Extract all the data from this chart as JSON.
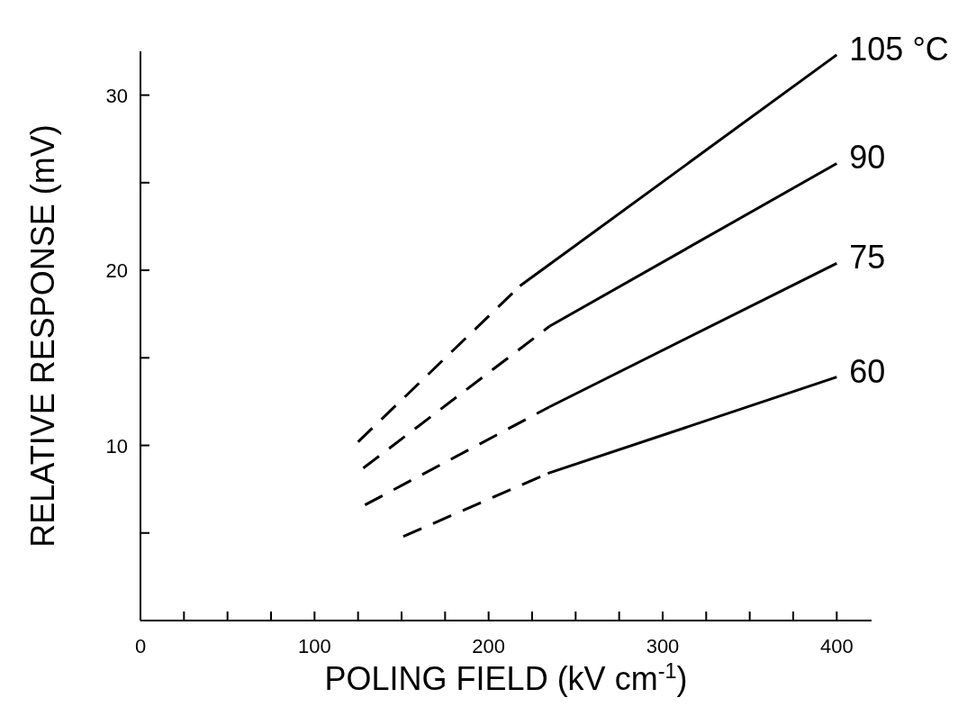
{
  "chart_data": {
    "type": "line",
    "xlabel": "POLING FIELD (kV cm$^{-1}$)",
    "ylabel": "RELATIVE RESPONSE (mV)",
    "xlim": [
      0,
      420
    ],
    "ylim": [
      0,
      32.5
    ],
    "xticks": [
      0,
      {
        "value": 25,
        "label": null
      },
      {
        "value": 50,
        "label": null
      },
      {
        "value": 75,
        "label": null
      },
      100,
      {
        "value": 125,
        "label": null
      },
      {
        "value": 150,
        "label": null
      },
      {
        "value": 175,
        "label": null
      },
      200,
      {
        "value": 225,
        "label": null
      },
      {
        "value": 250,
        "label": null
      },
      {
        "value": 275,
        "label": null
      },
      300,
      {
        "value": 325,
        "label": null
      },
      {
        "value": 350,
        "label": null
      },
      {
        "value": 375,
        "label": null
      },
      400
    ],
    "yticks": [
      {
        "value": 5,
        "label": null
      },
      10,
      {
        "value": 15,
        "label": null
      },
      20,
      {
        "value": 25,
        "label": null
      },
      30
    ],
    "grid": false,
    "marker": "none",
    "series": [
      {
        "color": "#000000",
        "line_style": "dashed",
        "x": [
          125,
          218
        ],
        "values": [
          10.2,
          19.1
        ]
      },
      {
        "name": "105 °C",
        "color": "#000000",
        "line_style": "solid",
        "x": [
          218,
          400
        ],
        "values": [
          19.1,
          32.3
        ]
      },
      {
        "color": "#000000",
        "line_style": "dashed",
        "x": [
          128,
          235
        ],
        "values": [
          8.7,
          16.8
        ]
      },
      {
        "name": "90",
        "color": "#000000",
        "line_style": "solid",
        "x": [
          235,
          400
        ],
        "values": [
          16.8,
          26.1
        ]
      },
      {
        "color": "#000000",
        "line_style": "dashed",
        "x": [
          129,
          235
        ],
        "values": [
          6.6,
          12.2
        ]
      },
      {
        "name": "75",
        "color": "#000000",
        "line_style": "solid",
        "x": [
          235,
          400
        ],
        "values": [
          12.2,
          20.4
        ]
      },
      {
        "color": "#000000",
        "line_style": "dashed",
        "x": [
          151,
          234
        ],
        "values": [
          4.8,
          8.4
        ]
      },
      {
        "name": "60",
        "color": "#000000",
        "line_style": "solid",
        "x": [
          234,
          400
        ],
        "values": [
          8.4,
          13.9
        ]
      }
    ]
  }
}
